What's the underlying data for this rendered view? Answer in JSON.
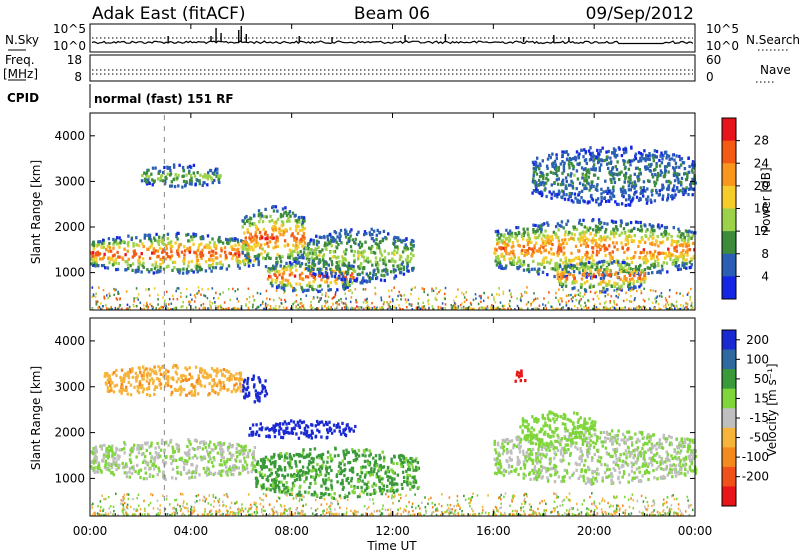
{
  "header": {
    "station": "Adak East (fitACF)",
    "beam": "Beam 06",
    "date": "09/Sep/2012"
  },
  "nsky_panel": {
    "left_label": "N.Sky",
    "right_label": "N.Search",
    "left_ticks": [
      "10^5",
      "10^0"
    ],
    "right_ticks": [
      "10^5",
      "10^0"
    ]
  },
  "freq_panel": {
    "left_label_line1": "Freq.",
    "left_label_line2": "[MHz]",
    "left_ticks": [
      "18",
      "8"
    ],
    "right_label": "Nave",
    "right_ticks": [
      "60",
      "0"
    ]
  },
  "cpid_panel": {
    "label": "CPID",
    "mode": "normal (fast) 151 RF"
  },
  "power_panel": {
    "ylabel": "Slant Range [km]",
    "colorbar_label": "Power [dB]",
    "colorbar_ticks": [
      "28",
      "24",
      "20",
      "16",
      "12",
      "8",
      "4"
    ],
    "colors": [
      "#e8141c",
      "#f45a14",
      "#f8961e",
      "#f6cc2a",
      "#9cd24a",
      "#3c8c3c",
      "#2a5fb4",
      "#1226e4"
    ]
  },
  "velocity_panel": {
    "ylabel": "Slant Range [km]",
    "colorbar_label": "Velocity [m s⁻¹]",
    "colorbar_ticks": [
      "200",
      "100",
      "50",
      "15",
      "-15",
      "-50",
      "-100",
      "-200"
    ],
    "colors": [
      "#1a2ad2",
      "#2e6aa0",
      "#3a9a3a",
      "#7ed63a",
      "#bfbfbf",
      "#f6b53a",
      "#f48a1e",
      "#f0501a",
      "#e81418"
    ]
  },
  "xaxis": {
    "label": "Time UT",
    "ticks": [
      "00:00",
      "04:00",
      "08:00",
      "12:00",
      "16:00",
      "20:00",
      "00:00"
    ]
  },
  "chart_data": [
    {
      "type": "line",
      "title": "Adak East (fitACF) Beam 06 09/Sep/2012",
      "ylabel": "N.Sky / N.Search",
      "xlim": [
        "00:00",
        "24:00"
      ],
      "ylim": [
        1,
        100000
      ],
      "log_y": true
    },
    {
      "type": "line",
      "ylabel": "Freq. [MHz] / Nave",
      "ylim_left": [
        8,
        18
      ],
      "ylim_right": [
        0,
        60
      ]
    },
    {
      "type": "heatmap",
      "title": "",
      "xlabel": "Time UT",
      "ylabel": "Slant Range [km]",
      "quantity": "Power [dB]",
      "x_hours": [
        0,
        24
      ],
      "ylim": [
        180,
        4500
      ],
      "yticks": [
        1000,
        2000,
        3000,
        4000
      ],
      "clim": [
        0,
        30
      ],
      "features": [
        {
          "t_start": 0.0,
          "t_end": 6.5,
          "range_min": 1000,
          "range_max": 1900,
          "peak_db": 28
        },
        {
          "t_start": 6.0,
          "t_end": 8.5,
          "range_min": 1100,
          "range_max": 2500,
          "peak_db": 26
        },
        {
          "t_start": 7.0,
          "t_end": 10.5,
          "range_min": 600,
          "range_max": 1300,
          "peak_db": 28
        },
        {
          "t_start": 8.5,
          "t_end": 12.8,
          "range_min": 800,
          "range_max": 2000,
          "peak_db": 14
        },
        {
          "t_start": 2.0,
          "t_end": 5.2,
          "range_min": 2900,
          "range_max": 3400,
          "peak_db": 12
        },
        {
          "t_start": 16.0,
          "t_end": 24.0,
          "range_min": 900,
          "range_max": 2200,
          "peak_db": 26
        },
        {
          "t_start": 18.5,
          "t_end": 22.0,
          "range_min": 600,
          "range_max": 1300,
          "peak_db": 26
        },
        {
          "t_start": 17.5,
          "t_end": 24.0,
          "range_min": 2500,
          "range_max": 3800,
          "peak_db": 8
        }
      ]
    },
    {
      "type": "heatmap",
      "title": "",
      "xlabel": "Time UT",
      "ylabel": "Slant Range [km]",
      "quantity": "Velocity [m s^-1]",
      "x_hours": [
        0,
        24
      ],
      "ylim": [
        180,
        4500
      ],
      "yticks": [
        1000,
        2000,
        3000,
        4000
      ],
      "clim": [
        -200,
        200
      ],
      "features": [
        {
          "t_start": 0.0,
          "t_end": 6.5,
          "range_min": 1000,
          "range_max": 1900,
          "velocity": 0
        },
        {
          "t_start": 6.0,
          "t_end": 7.0,
          "range_min": 2700,
          "range_max": 3300,
          "velocity": 200
        },
        {
          "t_start": 6.2,
          "t_end": 10.5,
          "range_min": 1900,
          "range_max": 2300,
          "velocity": 200
        },
        {
          "t_start": 6.5,
          "t_end": 13.0,
          "range_min": 600,
          "range_max": 1700,
          "velocity": 40
        },
        {
          "t_start": 0.5,
          "t_end": 6.0,
          "range_min": 2800,
          "range_max": 3500,
          "velocity": -40
        },
        {
          "t_start": 16.8,
          "t_end": 17.3,
          "range_min": 3100,
          "range_max": 3400,
          "velocity": -200
        },
        {
          "t_start": 16.0,
          "t_end": 24.0,
          "range_min": 900,
          "range_max": 2100,
          "velocity": 0
        },
        {
          "t_start": 17.0,
          "t_end": 20.0,
          "range_min": 1700,
          "range_max": 2500,
          "velocity": 15
        }
      ]
    }
  ]
}
